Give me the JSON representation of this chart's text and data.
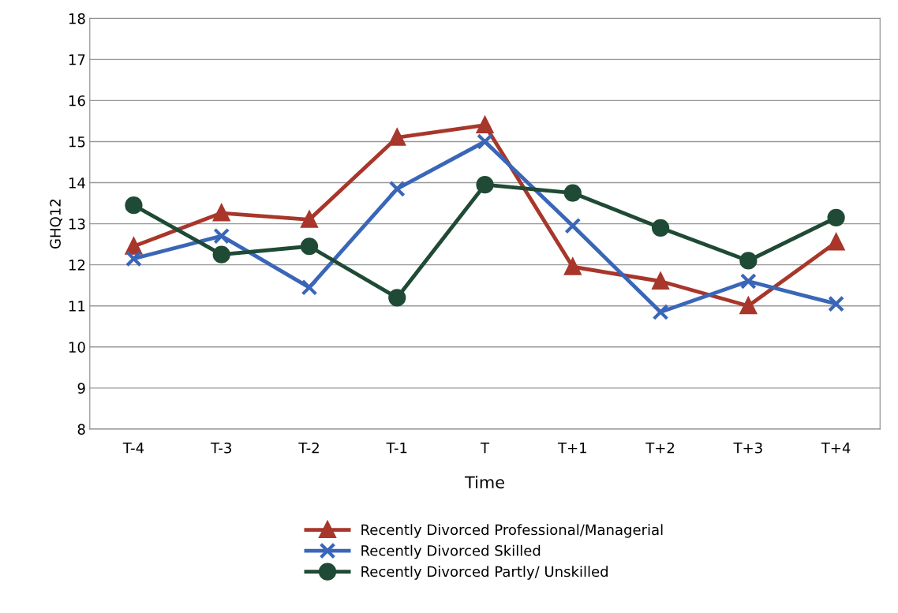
{
  "chart_data": {
    "type": "line",
    "xlabel": "Time",
    "ylabel": "GHQ12",
    "categories": [
      "T-4",
      "T-3",
      "T-2",
      "T-1",
      "T",
      "T+1",
      "T+2",
      "T+3",
      "T+4"
    ],
    "series": [
      {
        "name": "Recently Divorced Professional/Managerial",
        "color": "#a8362a",
        "marker": "triangle",
        "values": [
          12.45,
          13.26,
          13.1,
          15.1,
          15.4,
          11.95,
          11.6,
          11.0,
          12.55
        ]
      },
      {
        "name": "Recently Divorced Skilled",
        "color": "#3a66b8",
        "marker": "cross",
        "values": [
          12.15,
          12.7,
          11.45,
          13.85,
          15.0,
          12.95,
          10.85,
          11.6,
          11.05
        ]
      },
      {
        "name": "Recently Divorced Partly/ Unskilled",
        "color": "#1f4a35",
        "marker": "circle",
        "values": [
          13.45,
          12.25,
          12.45,
          11.2,
          13.95,
          13.75,
          12.9,
          12.1,
          13.15
        ]
      }
    ],
    "ylim": [
      8,
      18
    ],
    "yticks": [
      8,
      9,
      10,
      11,
      12,
      13,
      14,
      15,
      16,
      17,
      18
    ],
    "grid": "y",
    "legend": "bottom",
    "line_style": "solid"
  }
}
